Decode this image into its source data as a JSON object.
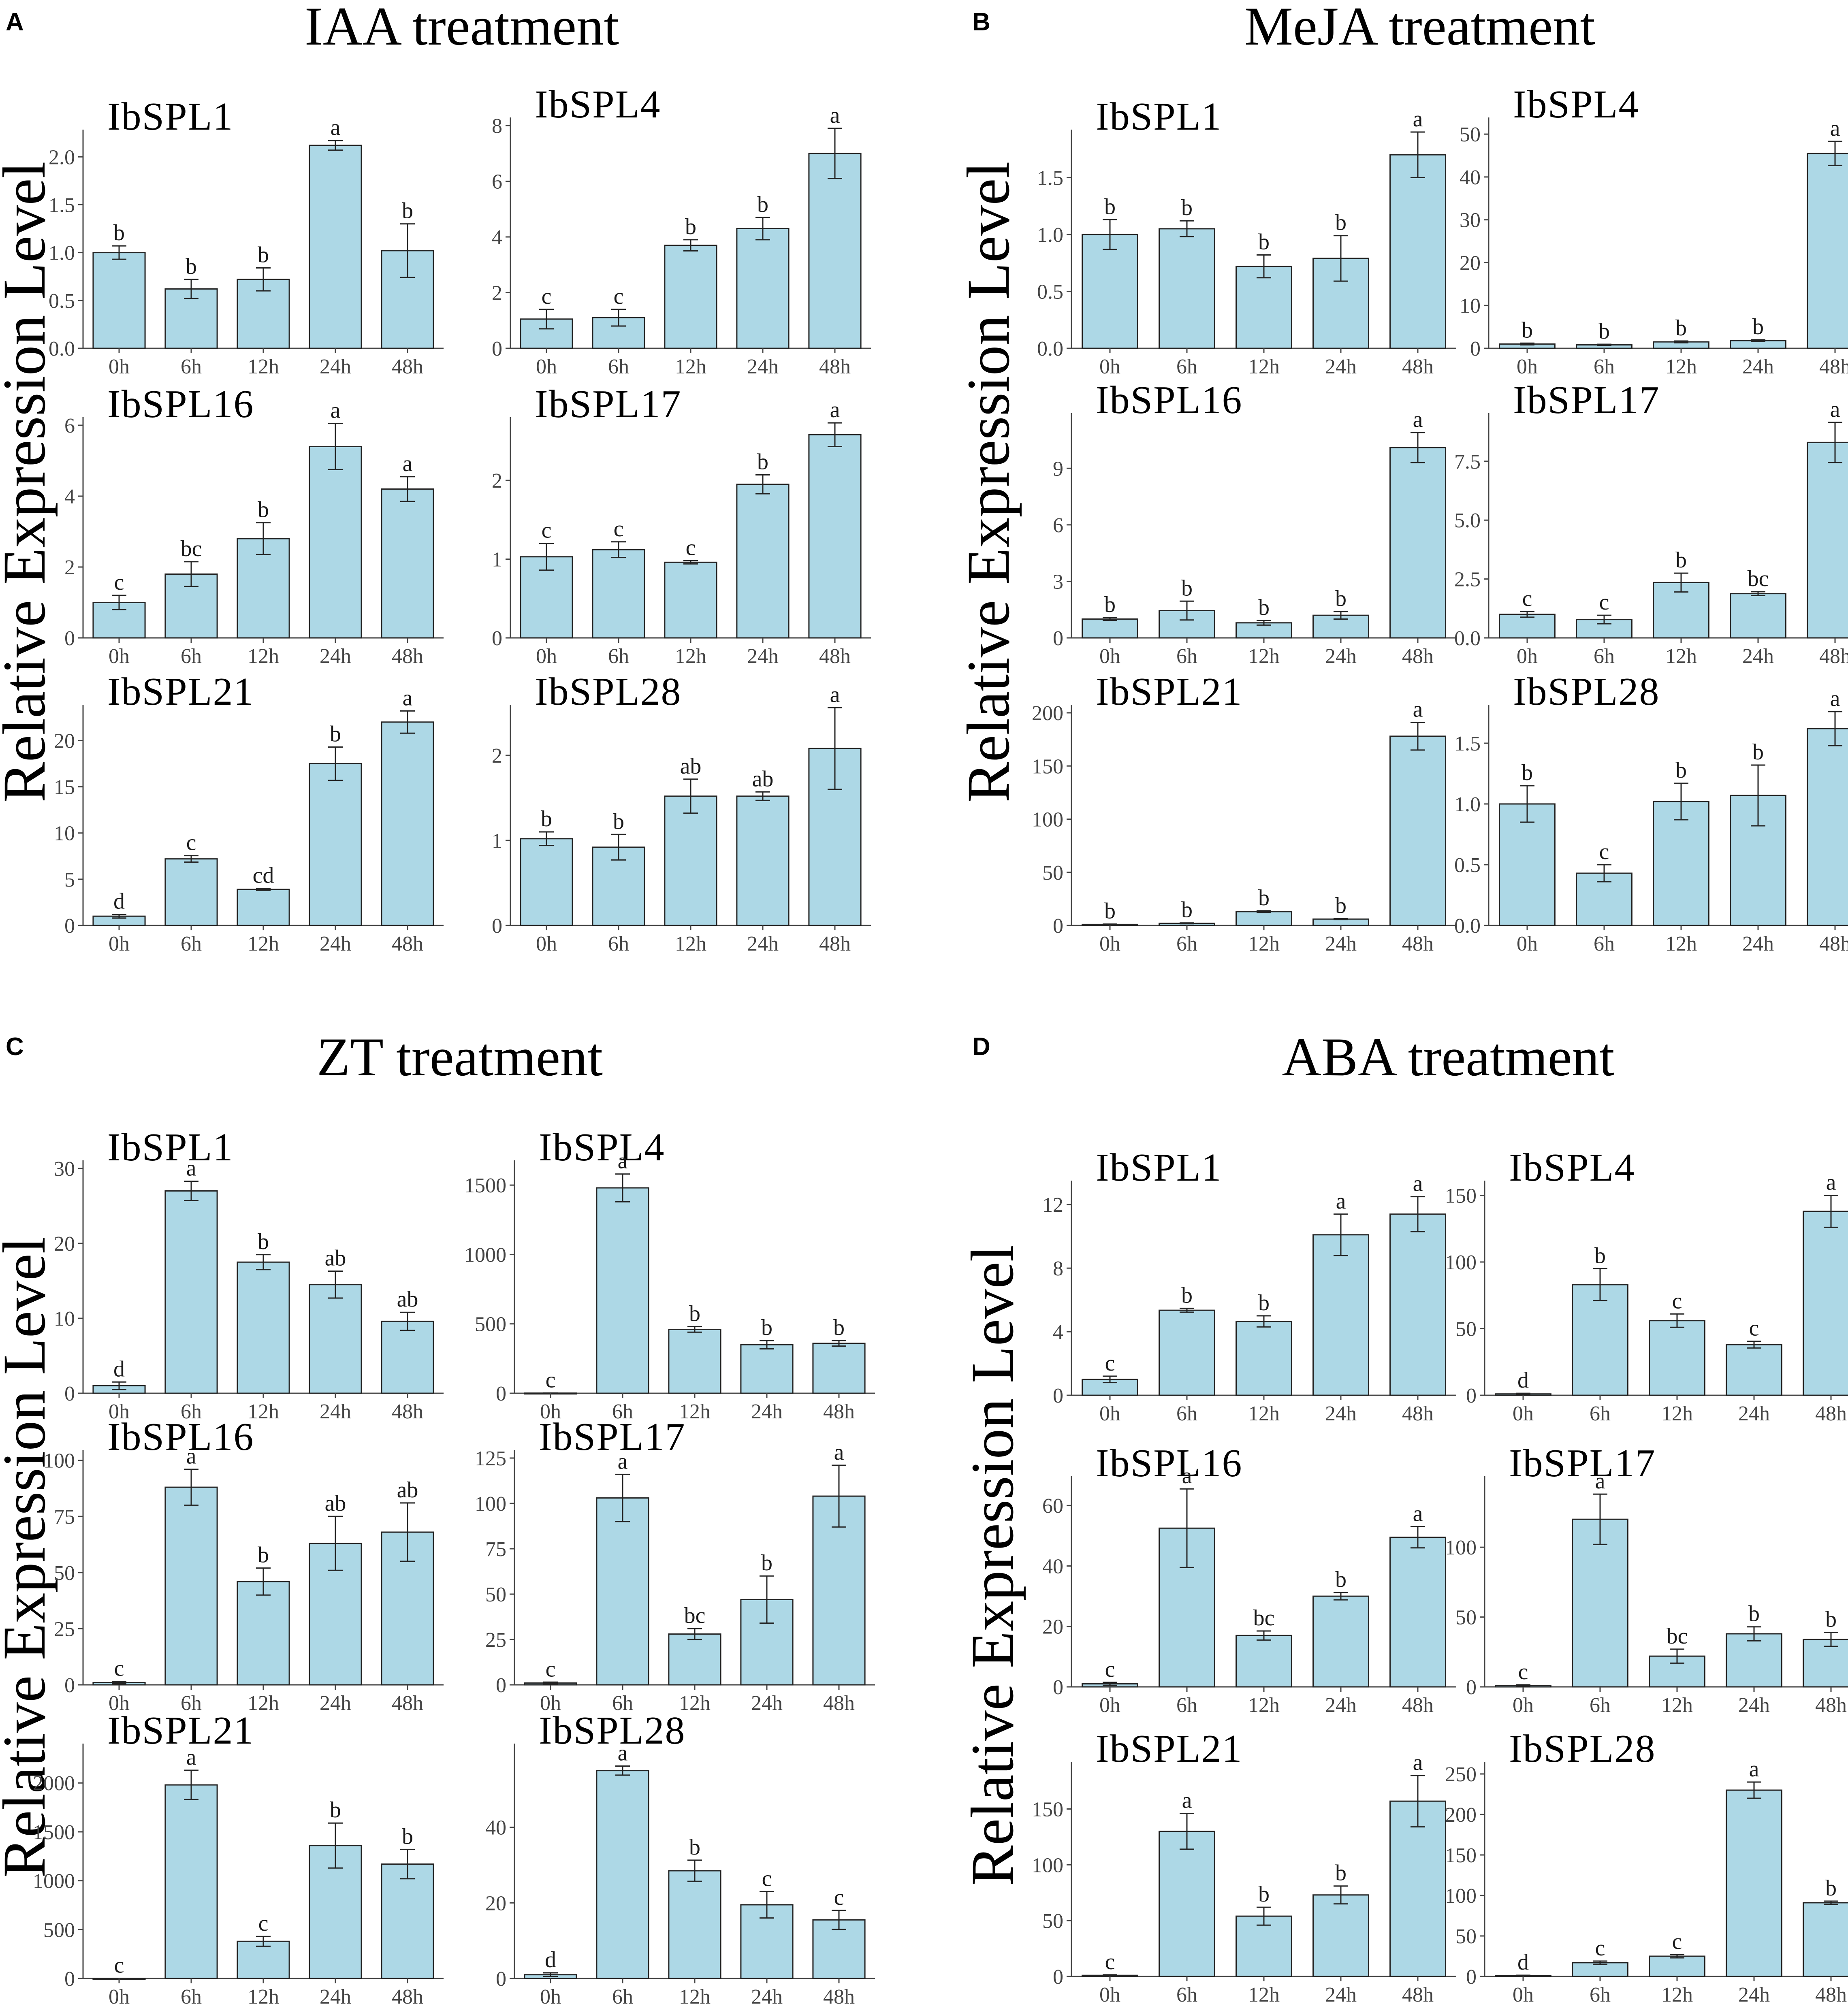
{
  "style": {
    "bar_fill": "#add8e6",
    "bar_stroke": "#222222",
    "axis_color": "#444444",
    "text_color": "#1a1a1a"
  },
  "chart_data": [
    {
      "panel": "A",
      "title": "IAA treatment",
      "ylabel": "Relative Expression Level",
      "categories": [
        "0h",
        "6h",
        "12h",
        "24h",
        "48h"
      ],
      "charts": [
        {
          "type": "bar",
          "gene": "IbSPL1",
          "ylim": [
            0,
            2.2
          ],
          "yticks": [
            "0.0",
            "0.5",
            "1.0",
            "1.5",
            "2.0"
          ],
          "values": [
            1.0,
            0.62,
            0.72,
            2.12,
            1.02
          ],
          "errors": [
            0.07,
            0.1,
            0.12,
            0.05,
            0.28
          ],
          "sig": [
            "b",
            "b",
            "b",
            "a",
            "b"
          ]
        },
        {
          "type": "bar",
          "gene": "IbSPL4",
          "ylim": [
            0,
            8
          ],
          "yticks": [
            "0",
            "2",
            "4",
            "6",
            "8"
          ],
          "values": [
            1.05,
            1.1,
            3.7,
            4.3,
            7.0
          ],
          "errors": [
            0.35,
            0.3,
            0.2,
            0.4,
            0.9
          ],
          "sig": [
            "c",
            "c",
            "b",
            "b",
            "a"
          ]
        },
        {
          "type": "bar",
          "gene": "IbSPL16",
          "ylim": [
            0,
            6
          ],
          "yticks": [
            "0",
            "2",
            "4",
            "6"
          ],
          "values": [
            1.0,
            1.8,
            2.8,
            5.4,
            4.2
          ],
          "errors": [
            0.2,
            0.35,
            0.45,
            0.65,
            0.35
          ],
          "sig": [
            "c",
            "bc",
            "b",
            "a",
            "a"
          ]
        },
        {
          "type": "bar",
          "gene": "IbSPL17",
          "ylim": [
            0,
            2.7
          ],
          "yticks": [
            "0",
            "1",
            "2"
          ],
          "values": [
            1.03,
            1.12,
            0.96,
            1.95,
            2.58
          ],
          "errors": [
            0.17,
            0.1,
            0.02,
            0.12,
            0.15
          ],
          "sig": [
            "c",
            "c",
            "c",
            "b",
            "a"
          ]
        },
        {
          "type": "bar",
          "gene": "IbSPL21",
          "ylim": [
            0,
            23
          ],
          "yticks": [
            "0",
            "5",
            "10",
            "15",
            "20"
          ],
          "values": [
            1.0,
            7.2,
            3.9,
            17.5,
            22.0
          ],
          "errors": [
            0.2,
            0.35,
            0.1,
            1.8,
            1.2
          ],
          "sig": [
            "d",
            "c",
            "cd",
            "b",
            "a"
          ]
        },
        {
          "type": "bar",
          "gene": "IbSPL28",
          "ylim": [
            0,
            2.5
          ],
          "yticks": [
            "0",
            "1",
            "2"
          ],
          "values": [
            1.02,
            0.92,
            1.52,
            1.52,
            2.08
          ],
          "errors": [
            0.08,
            0.15,
            0.2,
            0.05,
            0.48
          ],
          "sig": [
            "b",
            "b",
            "ab",
            "ab",
            "a"
          ]
        }
      ]
    },
    {
      "panel": "B",
      "title": "MeJA treatment",
      "ylabel": "Relative Expression Level",
      "categories": [
        "0h",
        "6h",
        "12h",
        "24h",
        "48h"
      ],
      "charts": [
        {
          "type": "bar",
          "gene": "IbSPL1",
          "ylim": [
            0,
            1.85
          ],
          "yticks": [
            "0.0",
            "0.5",
            "1.0",
            "1.5"
          ],
          "values": [
            1.0,
            1.05,
            0.72,
            0.79,
            1.7
          ],
          "errors": [
            0.13,
            0.07,
            0.1,
            0.2,
            0.2
          ],
          "sig": [
            "b",
            "b",
            "b",
            "b",
            "a"
          ]
        },
        {
          "type": "bar",
          "gene": "IbSPL4",
          "ylim": [
            0,
            52
          ],
          "yticks": [
            "0",
            "10",
            "20",
            "30",
            "40",
            "50"
          ],
          "values": [
            1.0,
            0.8,
            1.5,
            1.8,
            45.5
          ],
          "errors": [
            0.2,
            0.15,
            0.2,
            0.2,
            2.8
          ],
          "sig": [
            "b",
            "b",
            "b",
            "b",
            "a"
          ]
        },
        {
          "type": "bar",
          "gene": "IbSPL16",
          "ylim": [
            0,
            11.5
          ],
          "yticks": [
            "0",
            "3",
            "6",
            "9"
          ],
          "values": [
            1.0,
            1.45,
            0.8,
            1.2,
            10.1
          ],
          "errors": [
            0.08,
            0.5,
            0.12,
            0.2,
            0.8
          ],
          "sig": [
            "b",
            "b",
            "b",
            "b",
            "a"
          ]
        },
        {
          "type": "bar",
          "gene": "IbSPL17",
          "ylim": [
            0,
            9.2
          ],
          "yticks": [
            "0.0",
            "2.5",
            "5.0",
            "7.5"
          ],
          "values": [
            1.0,
            0.78,
            2.35,
            1.88,
            8.3
          ],
          "errors": [
            0.12,
            0.18,
            0.4,
            0.08,
            0.85
          ],
          "sig": [
            "c",
            "c",
            "b",
            "bc",
            "a"
          ]
        },
        {
          "type": "bar",
          "gene": "IbSPL21",
          "ylim": [
            0,
            200
          ],
          "yticks": [
            "0",
            "50",
            "100",
            "150",
            "200"
          ],
          "values": [
            1.0,
            2.0,
            13.0,
            6.0,
            178.0
          ],
          "errors": [
            0.3,
            0.4,
            0.8,
            0.5,
            13.0
          ],
          "sig": [
            "b",
            "b",
            "b",
            "b",
            "a"
          ]
        },
        {
          "type": "bar",
          "gene": "IbSPL28",
          "ylim": [
            0,
            1.75
          ],
          "yticks": [
            "0.0",
            "0.5",
            "1.0",
            "1.5"
          ],
          "values": [
            1.0,
            0.43,
            1.02,
            1.07,
            1.62
          ],
          "errors": [
            0.15,
            0.07,
            0.15,
            0.25,
            0.14
          ],
          "sig": [
            "b",
            "c",
            "b",
            "b",
            "a"
          ]
        }
      ]
    },
    {
      "panel": "C",
      "title": "ZT treatment",
      "ylabel": "Relative Expression Level",
      "categories": [
        "0h",
        "6h",
        "12h",
        "24h",
        "48h"
      ],
      "charts": [
        {
          "type": "bar",
          "gene": "IbSPL1",
          "ylim": [
            0,
            30
          ],
          "yticks": [
            "0",
            "10",
            "20",
            "30"
          ],
          "values": [
            1.0,
            27.0,
            17.5,
            14.5,
            9.6
          ],
          "errors": [
            0.5,
            1.3,
            1.0,
            1.8,
            1.2
          ],
          "sig": [
            "d",
            "a",
            "b",
            "ab",
            "ab"
          ]
        },
        {
          "type": "bar",
          "gene": "IbSPL4",
          "ylim": [
            0,
            1620
          ],
          "yticks": [
            "0",
            "500",
            "1000",
            "1500"
          ],
          "values": [
            1.0,
            1480,
            460,
            350,
            360
          ],
          "errors": [
            0.5,
            100,
            20,
            30,
            20
          ],
          "sig": [
            "c",
            "a",
            "b",
            "b",
            "b"
          ]
        },
        {
          "type": "bar",
          "gene": "IbSPL16",
          "ylim": [
            0,
            101
          ],
          "yticks": [
            "0",
            "25",
            "50",
            "75",
            "100"
          ],
          "values": [
            1.0,
            88.0,
            46.0,
            63.0,
            68.0
          ],
          "errors": [
            0.5,
            8.0,
            6.0,
            12.0,
            13.0
          ],
          "sig": [
            "c",
            "a",
            "b",
            "ab",
            "ab"
          ]
        },
        {
          "type": "bar",
          "gene": "IbSPL17",
          "ylim": [
            0,
            125
          ],
          "yticks": [
            "0",
            "25",
            "50",
            "75",
            "100",
            "125"
          ],
          "values": [
            1.0,
            103.0,
            28.0,
            47.0,
            104.0
          ],
          "errors": [
            0.5,
            13.0,
            3.0,
            13.0,
            17.0
          ],
          "sig": [
            "c",
            "a",
            "bc",
            "b",
            "a"
          ]
        },
        {
          "type": "bar",
          "gene": "IbSPL21",
          "ylim": [
            0,
            2320
          ],
          "yticks": [
            "0",
            "500",
            "1000",
            "1500",
            "2000"
          ],
          "values": [
            1.0,
            1980,
            380,
            1360,
            1170
          ],
          "errors": [
            1.0,
            150,
            50,
            230,
            150
          ],
          "sig": [
            "c",
            "a",
            "c",
            "b",
            "b"
          ]
        },
        {
          "type": "bar",
          "gene": "IbSPL28",
          "ylim": [
            0,
            60
          ],
          "yticks": [
            "0",
            "20",
            "40"
          ],
          "values": [
            1.0,
            55.0,
            28.5,
            19.5,
            15.5
          ],
          "errors": [
            0.5,
            1.2,
            2.8,
            3.5,
            2.5
          ],
          "sig": [
            "d",
            "a",
            "b",
            "c",
            "c"
          ]
        }
      ]
    },
    {
      "panel": "D",
      "title": "ABA treatment",
      "ylabel": "Relative Expression Level",
      "categories": [
        "0h",
        "6h",
        "12h",
        "24h",
        "48h"
      ],
      "charts": [
        {
          "type": "bar",
          "gene": "IbSPL1",
          "ylim": [
            0,
            13
          ],
          "yticks": [
            "0",
            "4",
            "8",
            "12"
          ],
          "values": [
            1.0,
            5.35,
            4.65,
            10.1,
            11.4
          ],
          "errors": [
            0.2,
            0.12,
            0.35,
            1.3,
            1.1
          ],
          "sig": [
            "c",
            "b",
            "b",
            "a",
            "a"
          ]
        },
        {
          "type": "bar",
          "gene": "IbSPL4",
          "ylim": [
            0,
            155
          ],
          "yticks": [
            "0",
            "50",
            "100",
            "150"
          ],
          "values": [
            1.0,
            83.0,
            56.0,
            38.0,
            138.0
          ],
          "errors": [
            0.5,
            12.0,
            5.0,
            2.5,
            12.0
          ],
          "sig": [
            "d",
            "b",
            "c",
            "c",
            "a"
          ]
        },
        {
          "type": "bar",
          "gene": "IbSPL16",
          "ylim": [
            0,
            67
          ],
          "yticks": [
            "0",
            "20",
            "40",
            "60"
          ],
          "values": [
            1.0,
            52.5,
            17.0,
            30.0,
            49.5
          ],
          "errors": [
            0.5,
            13.0,
            1.5,
            1.2,
            3.5
          ],
          "sig": [
            "c",
            "a",
            "bc",
            "b",
            "a"
          ]
        },
        {
          "type": "bar",
          "gene": "IbSPL17",
          "ylim": [
            0,
            145
          ],
          "yticks": [
            "0",
            "50",
            "100"
          ],
          "values": [
            1.0,
            120.0,
            22.0,
            38.0,
            34.0
          ],
          "errors": [
            0.5,
            18.0,
            5.0,
            5.0,
            5.0
          ],
          "sig": [
            "c",
            "a",
            "bc",
            "b",
            "b"
          ]
        },
        {
          "type": "bar",
          "gene": "IbSPL21",
          "ylim": [
            0,
            185
          ],
          "yticks": [
            "0",
            "50",
            "100",
            "150"
          ],
          "values": [
            1.0,
            130.0,
            54.0,
            73.0,
            157.0
          ],
          "errors": [
            0.5,
            16.0,
            8.0,
            8.0,
            23.0
          ],
          "sig": [
            "c",
            "a",
            "b",
            "b",
            "a"
          ]
        },
        {
          "type": "bar",
          "gene": "IbSPL28",
          "ylim": [
            0,
            255
          ],
          "yticks": [
            "0",
            "50",
            "100",
            "150",
            "200",
            "250"
          ],
          "values": [
            1.0,
            17.0,
            25.0,
            230.0,
            91.0
          ],
          "errors": [
            0.5,
            2.0,
            2.0,
            10.0,
            2.0
          ],
          "sig": [
            "d",
            "c",
            "c",
            "a",
            "b"
          ]
        }
      ]
    }
  ]
}
